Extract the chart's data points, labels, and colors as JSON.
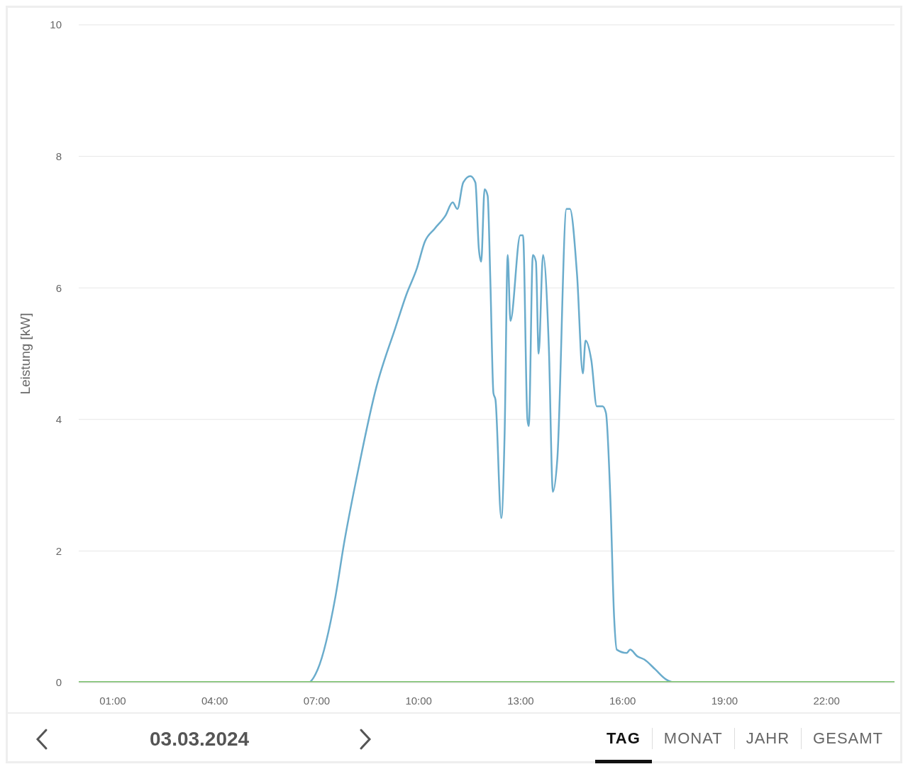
{
  "chart_data": {
    "type": "line",
    "ylabel": "Leistung [kW]",
    "xlim": [
      0,
      24
    ],
    "xticks": [
      {
        "value": 1,
        "label": "01:00"
      },
      {
        "value": 4,
        "label": "04:00"
      },
      {
        "value": 7,
        "label": "07:00"
      },
      {
        "value": 10,
        "label": "10:00"
      },
      {
        "value": 13,
        "label": "13:00"
      },
      {
        "value": 16,
        "label": "16:00"
      },
      {
        "value": 19,
        "label": "19:00"
      },
      {
        "value": 22,
        "label": "22:00"
      }
    ],
    "ylim": [
      0,
      10
    ],
    "yticks": [
      0,
      2,
      4,
      6,
      8,
      10
    ],
    "grid": "y",
    "legend": false,
    "marker": "none",
    "line_style": "solid",
    "series": [
      {
        "color": "#6aaccc",
        "x": [
          0,
          6.75,
          7.03,
          7.55,
          7.8,
          8.17,
          8.76,
          9.32,
          9.64,
          9.95,
          10.18,
          10.47,
          10.79,
          11.0,
          11.14,
          11.31,
          11.52,
          11.67,
          11.77,
          11.84,
          11.94,
          12.03,
          12.11,
          12.2,
          12.26,
          12.43,
          12.53,
          12.62,
          12.7,
          12.99,
          13.07,
          13.2,
          13.24,
          13.36,
          13.45,
          13.53,
          13.66,
          13.83,
          13.95,
          14.08,
          14.35,
          14.45,
          14.66,
          14.83,
          14.91,
          15.08,
          15.24,
          15.41,
          15.51,
          15.64,
          15.75,
          15.83,
          16.12,
          16.22,
          16.43,
          16.64,
          16.96,
          17.27,
          17.54,
          24
        ],
        "values": [
          0,
          0,
          0.2,
          1.3,
          2.1,
          3.1,
          4.5,
          5.4,
          5.9,
          6.3,
          6.7,
          6.9,
          7.1,
          7.3,
          7.2,
          7.6,
          7.7,
          7.6,
          6.6,
          6.4,
          7.5,
          7.4,
          6.1,
          4.4,
          4.3,
          2.5,
          3.8,
          6.5,
          5.5,
          6.8,
          6.8,
          4.0,
          3.9,
          6.5,
          6.4,
          5.0,
          6.5,
          5.1,
          2.9,
          3.4,
          7.2,
          7.2,
          6.2,
          4.7,
          5.2,
          4.9,
          4.2,
          4.2,
          4.1,
          2.8,
          1.0,
          0.5,
          0.45,
          0.5,
          0.4,
          0.35,
          0.2,
          0.05,
          0,
          0
        ]
      },
      {
        "color": "#7cc36e",
        "x": [
          0,
          24
        ],
        "values": [
          0,
          0
        ]
      }
    ],
    "annotations": [
      "03.03.2024",
      "TAG",
      "MONAT",
      "JAHR",
      "GESAMT"
    ]
  }
}
